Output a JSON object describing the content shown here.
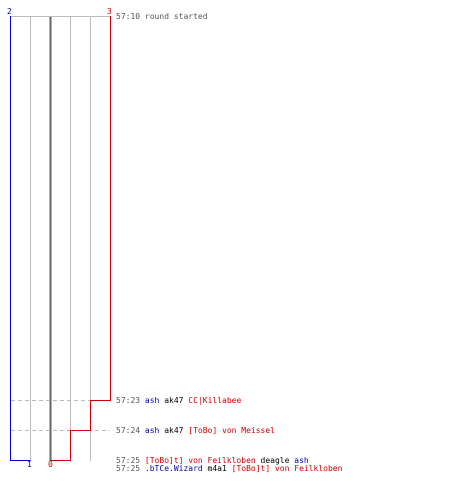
{
  "scores": {
    "blue_top": "2",
    "red_top": "3",
    "blue_bottom": "1",
    "red_bottom": "0"
  },
  "colors": {
    "blue_team": "#0000cc",
    "red_team": "#cc0000",
    "grid": "#bbbbbb",
    "dash": "#bbbbbb",
    "center_line": "#666666"
  },
  "events": [
    {
      "time": "57:10",
      "parts": [
        {
          "text": "round started",
          "color": "gray"
        }
      ]
    },
    {
      "time": "57:23",
      "parts": [
        {
          "text": "ash",
          "color": "blue"
        },
        {
          "text": "ak47",
          "color": "blk"
        },
        {
          "text": "CC|Killabee",
          "color": "red"
        }
      ]
    },
    {
      "time": "57:24",
      "parts": [
        {
          "text": "ash",
          "color": "blue"
        },
        {
          "text": "ak47",
          "color": "blk"
        },
        {
          "text": "[ToBo] von Meissel",
          "color": "red"
        }
      ]
    },
    {
      "time": "57:25",
      "parts": [
        {
          "text": "[ToBo]t] von Feilkloben",
          "color": "red"
        },
        {
          "text": "deagle",
          "color": "blk"
        },
        {
          "text": "ash",
          "color": "blue"
        }
      ]
    },
    {
      "time": "57:25",
      "parts": [
        {
          "text": ".bTCe.Wizard",
          "color": "blue"
        },
        {
          "text": "m4a1",
          "color": "blk"
        },
        {
          "text": "[ToBo]t] von Feilkloben",
          "color": "red"
        }
      ]
    }
  ]
}
